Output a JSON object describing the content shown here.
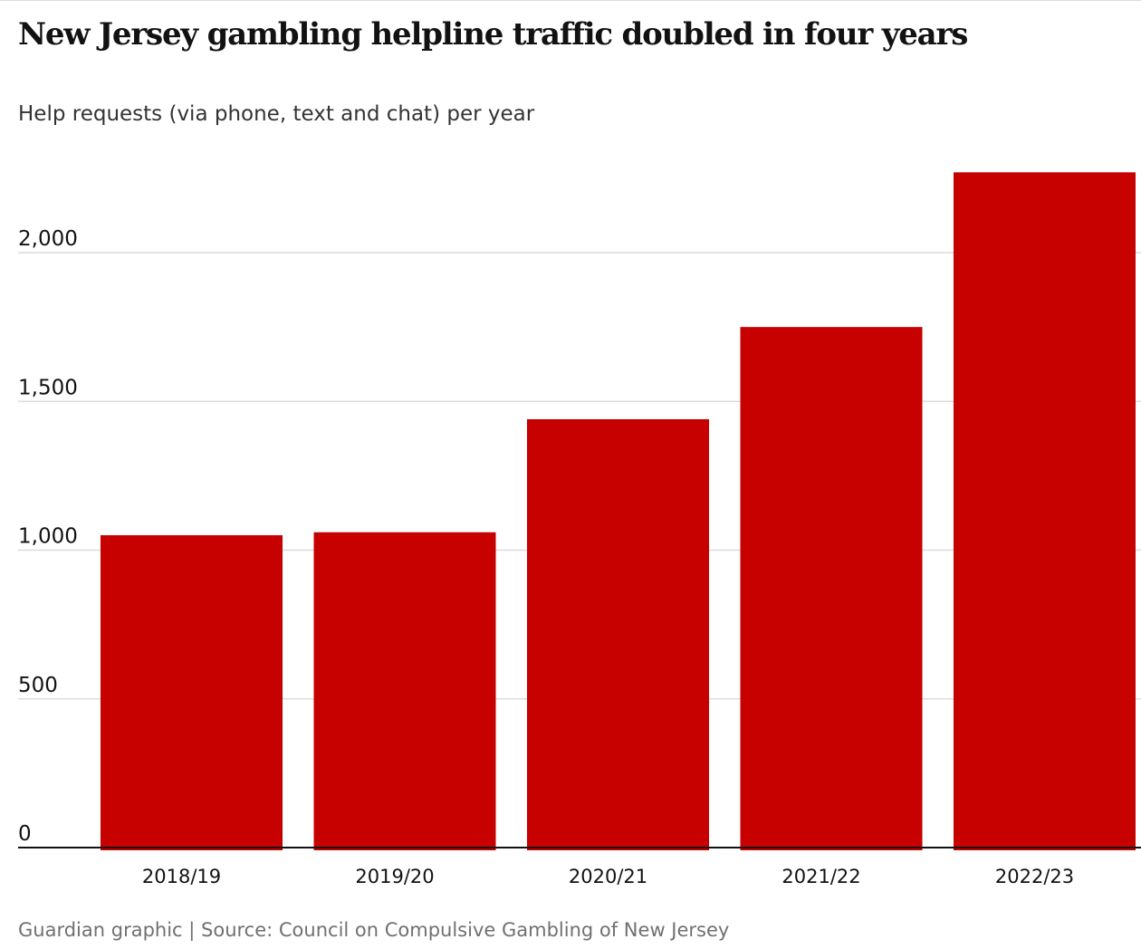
{
  "chart_data": {
    "type": "bar",
    "title": "New Jersey gambling helpline traffic doubled in four years",
    "subtitle": "Help requests (via phone, text and chat) per year",
    "categories": [
      "2018/19",
      "2019/20",
      "2020/21",
      "2021/22",
      "2022/23"
    ],
    "values": [
      1050,
      1060,
      1440,
      1750,
      2270
    ],
    "ylim": [
      0,
      2300
    ],
    "yticks": [
      0,
      500,
      1000,
      1500,
      2000
    ],
    "ytick_labels": [
      "0",
      "500",
      "1,000",
      "1,500",
      "2,000"
    ],
    "xlabel": "",
    "ylabel": "",
    "grid": true,
    "colors": {
      "bar": "#c70000",
      "grid": "#dcdcdc",
      "axis": "#121212"
    },
    "source": "Guardian graphic | Source: Council on Compulsive Gambling of New Jersey"
  }
}
